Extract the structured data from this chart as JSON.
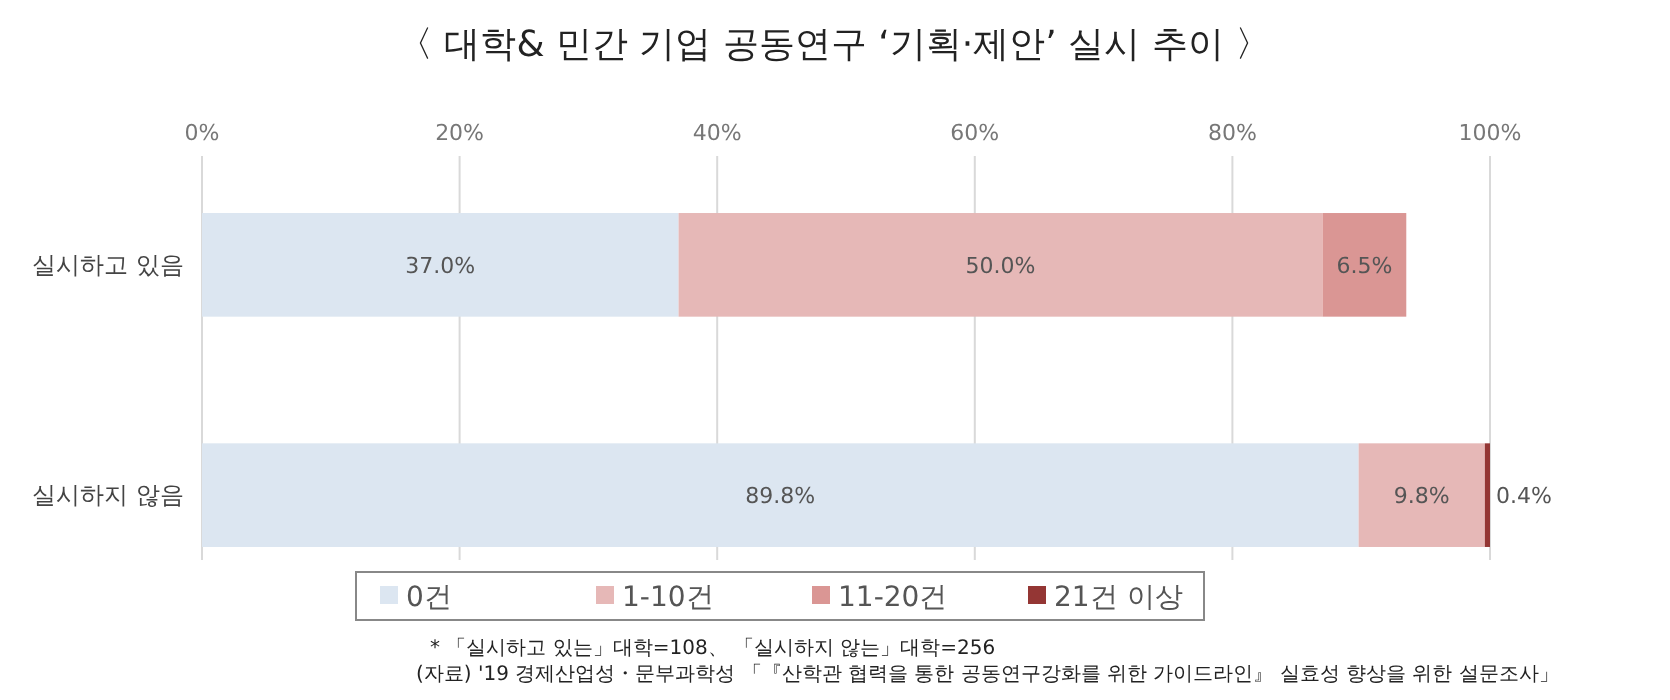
{
  "chart_data": {
    "type": "bar",
    "orientation": "horizontal",
    "stacked": true,
    "title": "〈 대학& 민간 기업 공동연구 ‘기획·제안’ 실시 추이 〉",
    "categories": [
      "실시하고 있음",
      "실시하지 않음"
    ],
    "series": [
      {
        "name": "0건",
        "color": "#dce6f1",
        "values": [
          37.0,
          89.8
        ],
        "value_labels": [
          "37.0%",
          "89.8%"
        ]
      },
      {
        "name": "1-10건",
        "color": "#e6b8b7",
        "values": [
          50.0,
          9.8
        ],
        "value_labels": [
          "50.0%",
          "9.8%"
        ]
      },
      {
        "name": "11-20건",
        "color": "#da9694",
        "values": [
          6.5,
          null
        ],
        "value_labels": [
          "6.5%",
          null
        ]
      },
      {
        "name": "21건 이상",
        "color": "#943634",
        "values": [
          null,
          0.4
        ],
        "value_labels": [
          null,
          "0.4%"
        ]
      }
    ],
    "xlim": [
      0,
      100
    ],
    "xticks": [
      {
        "value": 0,
        "label": "0%"
      },
      {
        "value": 20,
        "label": "20%"
      },
      {
        "value": 40,
        "label": "40%"
      },
      {
        "value": 60,
        "label": "60%"
      },
      {
        "value": 80,
        "label": "80%"
      },
      {
        "value": 100,
        "label": "100%"
      }
    ],
    "grid": "x",
    "legend": "bottom",
    "annotations": [
      "* 「실시하고 있는」대학=108、 「실시하지 않는」대학=256",
      "(자료) '19 경제산업성・문부과학성 「『산학관 협력을 통한 공동연구강화를 위한 가이드라인』 실효성 향상을 위한 설문조사」"
    ]
  }
}
